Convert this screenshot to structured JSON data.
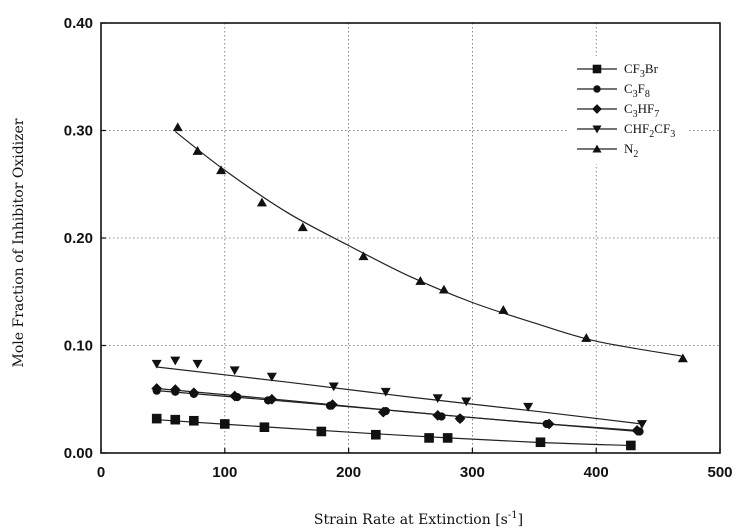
{
  "chart_data": {
    "type": "scatter",
    "xlabel": "Strain Rate at Extinction [s",
    "xlabel_superscript": "-1",
    "xlabel_suffix": "]",
    "ylabel": "Mole Fraction of Inhibitor Oxidizer",
    "xlim": [
      0,
      500
    ],
    "ylim": [
      0,
      0.4
    ],
    "x_ticks": [
      "0",
      "100",
      "200",
      "300",
      "400",
      "500"
    ],
    "y_ticks": [
      "0.00",
      "0.10",
      "0.20",
      "0.30",
      "0.40"
    ],
    "grid": true,
    "legend_position": "top-right",
    "series": [
      {
        "name": "CF3Br",
        "legend": [
          {
            "t": "CF",
            "s": ""
          },
          {
            "t": "3",
            "s": "sub"
          },
          {
            "t": "Br",
            "s": ""
          }
        ],
        "marker": "square",
        "x": [
          45,
          60,
          75,
          100,
          132,
          178,
          222,
          265,
          280,
          355,
          428
        ],
        "y": [
          0.032,
          0.031,
          0.03,
          0.027,
          0.024,
          0.02,
          0.017,
          0.014,
          0.014,
          0.01,
          0.007
        ],
        "fit": [
          [
            45,
            0.031
          ],
          [
            150,
            0.023
          ],
          [
            250,
            0.016
          ],
          [
            350,
            0.01
          ],
          [
            428,
            0.007
          ]
        ]
      },
      {
        "name": "C3F8",
        "legend": [
          {
            "t": "C",
            "s": ""
          },
          {
            "t": "3",
            "s": "sub"
          },
          {
            "t": "F",
            "s": ""
          },
          {
            "t": "8",
            "s": "sub"
          }
        ],
        "marker": "circle",
        "x": [
          45,
          60,
          75,
          110,
          135,
          185,
          230,
          275,
          290,
          360,
          435
        ],
        "y": [
          0.058,
          0.057,
          0.055,
          0.052,
          0.049,
          0.044,
          0.039,
          0.034,
          0.032,
          0.027,
          0.02
        ],
        "fit": [
          [
            45,
            0.058
          ],
          [
            150,
            0.048
          ],
          [
            250,
            0.038
          ],
          [
            350,
            0.028
          ],
          [
            435,
            0.02
          ]
        ]
      },
      {
        "name": "C3HF7",
        "legend": [
          {
            "t": "C",
            "s": ""
          },
          {
            "t": "3",
            "s": "sub"
          },
          {
            "t": "HF",
            "s": ""
          },
          {
            "t": "7",
            "s": "sub"
          }
        ],
        "marker": "diamond",
        "x": [
          45,
          60,
          75,
          108,
          138,
          187,
          228,
          272,
          290,
          362,
          433
        ],
        "y": [
          0.06,
          0.059,
          0.056,
          0.053,
          0.05,
          0.045,
          0.038,
          0.035,
          0.032,
          0.027,
          0.021
        ],
        "fit": [
          [
            45,
            0.06
          ],
          [
            150,
            0.049
          ],
          [
            250,
            0.038
          ],
          [
            350,
            0.028
          ],
          [
            433,
            0.021
          ]
        ]
      },
      {
        "name": "CHF2CF3",
        "legend": [
          {
            "t": "CHF",
            "s": ""
          },
          {
            "t": "2",
            "s": "sub"
          },
          {
            "t": "CF",
            "s": ""
          },
          {
            "t": "3",
            "s": "sub"
          }
        ],
        "marker": "triangle-down",
        "x": [
          45,
          60,
          78,
          108,
          138,
          188,
          230,
          272,
          295,
          345,
          437
        ],
        "y": [
          0.083,
          0.086,
          0.083,
          0.077,
          0.071,
          0.062,
          0.057,
          0.051,
          0.048,
          0.043,
          0.027
        ],
        "fit": [
          [
            45,
            0.08
          ],
          [
            150,
            0.066
          ],
          [
            250,
            0.052
          ],
          [
            350,
            0.039
          ],
          [
            437,
            0.027
          ]
        ]
      },
      {
        "name": "N2",
        "legend": [
          {
            "t": "N",
            "s": ""
          },
          {
            "t": "2",
            "s": "sub"
          }
        ],
        "marker": "triangle-up",
        "x": [
          62,
          78,
          97,
          130,
          163,
          212,
          258,
          277,
          325,
          392,
          470
        ],
        "y": [
          0.303,
          0.281,
          0.263,
          0.233,
          0.21,
          0.183,
          0.16,
          0.152,
          0.133,
          0.107,
          0.088
        ],
        "fit": [
          [
            60,
            0.299
          ],
          [
            100,
            0.263
          ],
          [
            150,
            0.224
          ],
          [
            200,
            0.193
          ],
          [
            250,
            0.164
          ],
          [
            300,
            0.14
          ],
          [
            350,
            0.121
          ],
          [
            400,
            0.104
          ],
          [
            470,
            0.09
          ]
        ]
      }
    ]
  }
}
